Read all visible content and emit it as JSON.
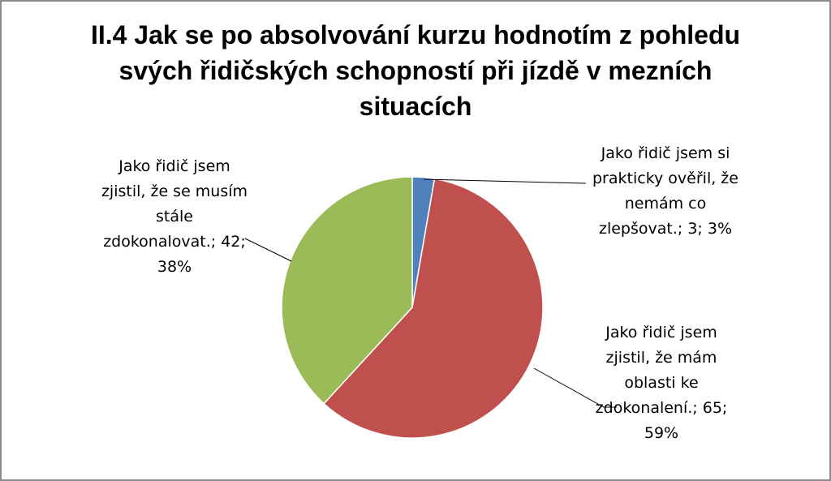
{
  "chart_data": {
    "type": "pie",
    "title": "II.4 Jak se po absolvování kurzu hodnotím z pohledu svých řidičských schopností při jízdě v mezních situacích",
    "title_lines": [
      "II.4 Jak se po absolvování kurzu hodnotím z pohledu",
      "svých řidičských schopností při jízdě v mezních",
      "situacích"
    ],
    "slices": [
      {
        "category": "Jako řidič jsem si prakticky ověřil, že nemám co zlepšovat.",
        "value": 3,
        "percent": "3%",
        "color": "#4f81bd",
        "label_lines": [
          "Jako řidič jsem si",
          "prakticky ověřil, že",
          "nemám co",
          "zlepšovat.; 3; 3%"
        ]
      },
      {
        "category": "Jako řidič jsem zjistil, že mám oblasti ke zdokonalení.",
        "value": 65,
        "percent": "59%",
        "color": "#c0504d",
        "label_lines": [
          "Jako řidič jsem",
          "zjistil, že mám",
          "oblasti ke",
          "zdokonalení.; 65;",
          "59%"
        ]
      },
      {
        "category": "Jako řidič jsem zjistil, že se musím stále zdokonalovat.",
        "value": 42,
        "percent": "38%",
        "color": "#9bbb59",
        "label_lines": [
          "Jako řidič jsem",
          "zjistil, že se musím",
          "stále",
          "zdokonalovat.; 42;",
          "38%"
        ]
      }
    ],
    "legend": "none"
  }
}
